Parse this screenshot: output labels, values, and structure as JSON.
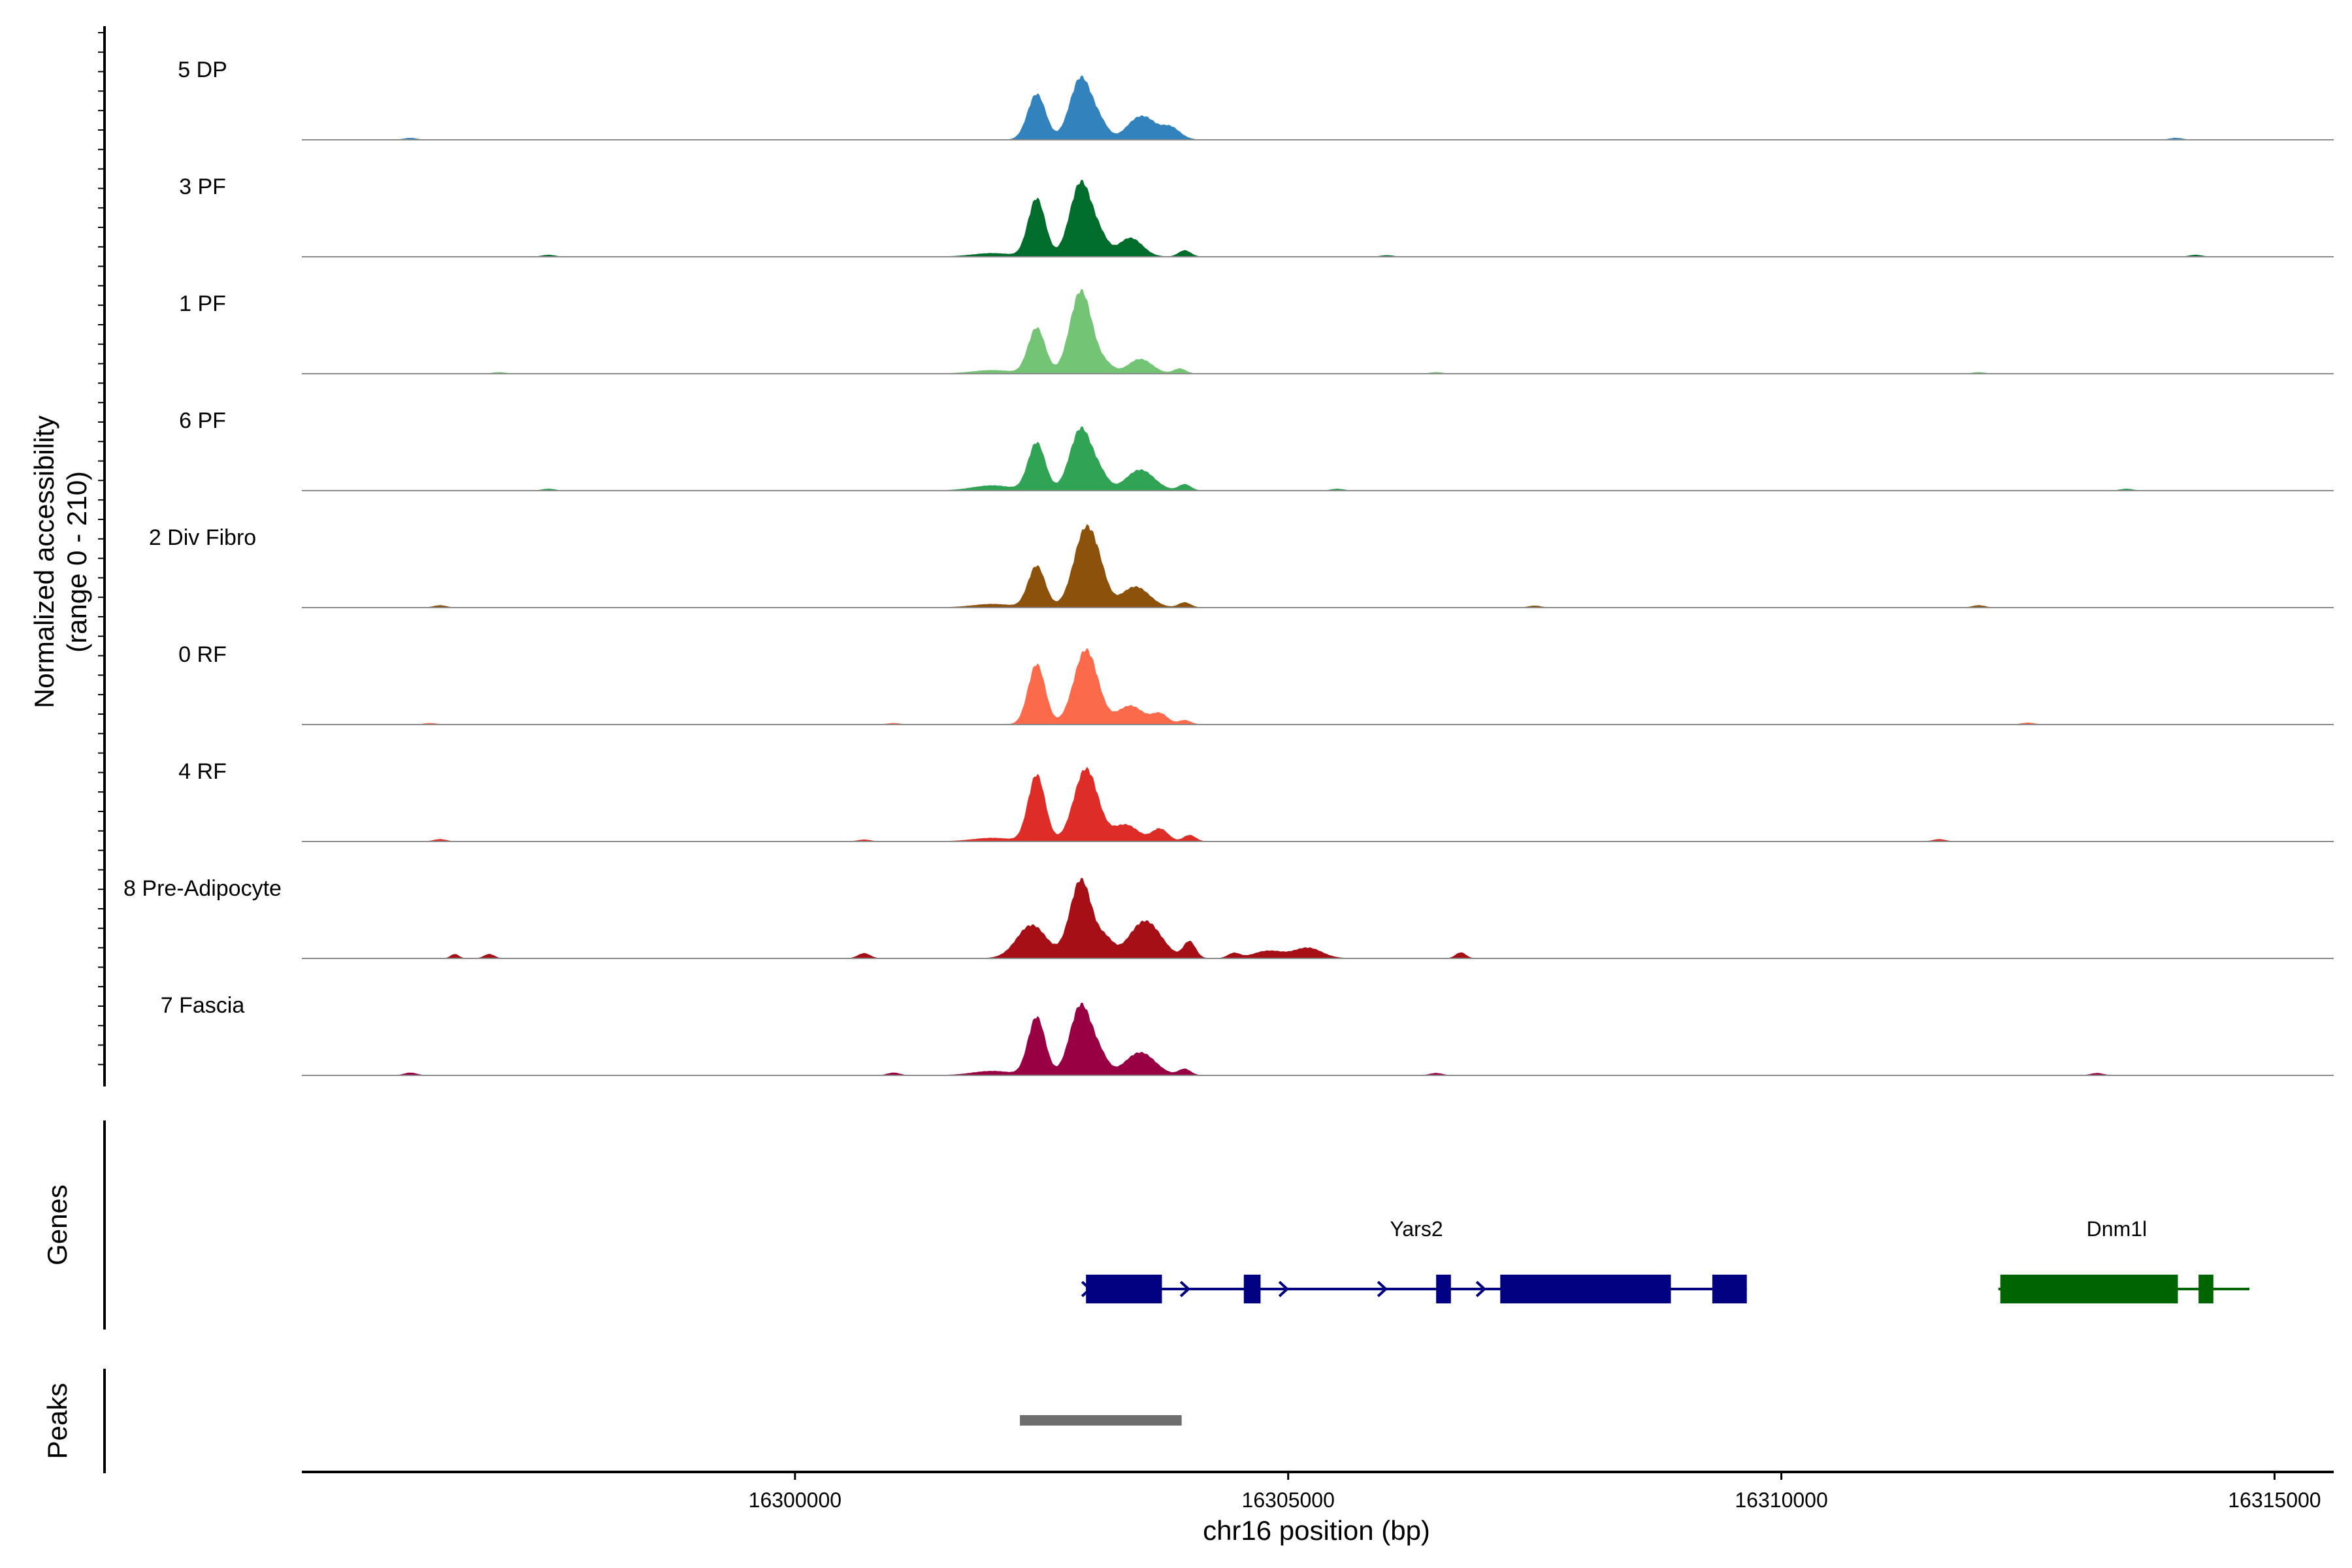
{
  "chart_data": {
    "type": "area",
    "title": "",
    "ylabel_line1": "Normalized accessibility",
    "ylabel_line2": "(range 0 - 210)",
    "y_range": [
      0,
      210
    ],
    "xlabel": "chr16 position (bp)",
    "xlim": [
      16295000,
      16315600
    ],
    "x_ticks": [
      16300000,
      16305000,
      16310000,
      16315000
    ],
    "x_tick_labels": [
      "16300000",
      "16305000",
      "16310000",
      "16315000"
    ],
    "genes_label": "Genes",
    "peaks_label": "Peaks",
    "series": [
      {
        "name": "5 DP",
        "color": "#3182bd",
        "peaks": [
          [
            16302450,
            110,
            90
          ],
          [
            16302900,
            150,
            110
          ],
          [
            16303500,
            55,
            130
          ],
          [
            16303800,
            30,
            100
          ],
          [
            16303100,
            30,
            80
          ]
        ],
        "noise": [
          [
            16296100,
            4
          ],
          [
            16303600,
            5
          ],
          [
            16314000,
            4
          ]
        ]
      },
      {
        "name": "3 PF",
        "color": "#006d2c",
        "peaks": [
          [
            16302450,
            140,
            85
          ],
          [
            16302900,
            180,
            110
          ],
          [
            16303400,
            45,
            120
          ],
          [
            16303100,
            35,
            80
          ],
          [
            16303950,
            15,
            60
          ],
          [
            16302000,
            8,
            200
          ]
        ],
        "noise": [
          [
            16297500,
            4
          ],
          [
            16306000,
            3
          ],
          [
            16314200,
            4
          ]
        ]
      },
      {
        "name": "1 PF",
        "color": "#74c476",
        "peaks": [
          [
            16302450,
            110,
            85
          ],
          [
            16302900,
            200,
            110
          ],
          [
            16303500,
            35,
            120
          ],
          [
            16303150,
            20,
            80
          ],
          [
            16303900,
            12,
            60
          ],
          [
            16302000,
            8,
            200
          ]
        ],
        "noise": [
          [
            16297000,
            3
          ],
          [
            16306500,
            3
          ],
          [
            16312000,
            3
          ]
        ]
      },
      {
        "name": "6 PF",
        "color": "#31a354",
        "peaks": [
          [
            16302450,
            115,
            85
          ],
          [
            16302900,
            150,
            110
          ],
          [
            16303500,
            50,
            140
          ],
          [
            16303100,
            30,
            80
          ],
          [
            16303950,
            15,
            60
          ],
          [
            16302000,
            12,
            200
          ]
        ],
        "noise": [
          [
            16297500,
            4
          ],
          [
            16305500,
            4
          ],
          [
            16313500,
            4
          ]
        ]
      },
      {
        "name": "2 Div Fibro",
        "color": "#8c510a",
        "peaks": [
          [
            16302450,
            100,
            85
          ],
          [
            16302950,
            190,
            120
          ],
          [
            16303450,
            50,
            140
          ],
          [
            16303100,
            30,
            80
          ],
          [
            16303950,
            12,
            60
          ],
          [
            16302000,
            8,
            200
          ]
        ],
        "noise": [
          [
            16296400,
            5
          ],
          [
            16307500,
            4
          ],
          [
            16312000,
            5
          ]
        ]
      },
      {
        "name": "0 RF",
        "color": "#fb6a4a",
        "peaks": [
          [
            16302450,
            145,
            85
          ],
          [
            16302950,
            180,
            120
          ],
          [
            16303400,
            45,
            130
          ],
          [
            16303700,
            25,
            80
          ],
          [
            16303950,
            10,
            60
          ]
        ],
        "noise": [
          [
            16296300,
            3
          ],
          [
            16301000,
            3
          ],
          [
            16312500,
            4
          ]
        ]
      },
      {
        "name": "4 RF",
        "color": "#de2d26",
        "peaks": [
          [
            16302450,
            160,
            85
          ],
          [
            16302950,
            175,
            120
          ],
          [
            16303350,
            40,
            130
          ],
          [
            16303700,
            30,
            80
          ],
          [
            16304000,
            15,
            60
          ],
          [
            16302000,
            8,
            200
          ]
        ],
        "noise": [
          [
            16296400,
            5
          ],
          [
            16300700,
            4
          ],
          [
            16311600,
            5
          ]
        ]
      },
      {
        "name": "8 Pre-Adipocyte",
        "color": "#a50f15",
        "peaks": [
          [
            16302900,
            190,
            110
          ],
          [
            16302400,
            80,
            150
          ],
          [
            16303550,
            90,
            160
          ],
          [
            16303150,
            40,
            80
          ],
          [
            16304000,
            40,
            60
          ],
          [
            16305200,
            25,
            140
          ],
          [
            16304800,
            18,
            150
          ],
          [
            16304450,
            12,
            60
          ],
          [
            16306750,
            14,
            50
          ],
          [
            16300700,
            12,
            60
          ],
          [
            16296900,
            10,
            50
          ],
          [
            16296550,
            10,
            40
          ]
        ],
        "noise": []
      },
      {
        "name": "7 Fascia",
        "color": "#980043",
        "peaks": [
          [
            16302450,
            140,
            85
          ],
          [
            16302900,
            170,
            110
          ],
          [
            16303500,
            55,
            150
          ],
          [
            16303100,
            35,
            80
          ],
          [
            16303950,
            15,
            60
          ],
          [
            16302000,
            10,
            200
          ]
        ],
        "noise": [
          [
            16296100,
            6
          ],
          [
            16301000,
            6
          ],
          [
            16306500,
            5
          ],
          [
            16313200,
            5
          ]
        ]
      }
    ],
    "genes": [
      {
        "name": "Yars2",
        "color": "#000080",
        "strand": "+",
        "start": 16302950,
        "end": 16309650,
        "exons": [
          [
            16302950,
            16303720
          ],
          [
            16304550,
            16304720
          ],
          [
            16306500,
            16306650
          ],
          [
            16307150,
            16308880
          ],
          [
            16309300,
            16309650
          ]
        ],
        "arrows": [
          16302950,
          16303950,
          16304950,
          16305950,
          16306950
        ]
      },
      {
        "name": "Dnm1l",
        "color": "#006400",
        "strand": "+",
        "start": 16312200,
        "end": 16314600,
        "exons": [
          [
            16312220,
            16314020
          ],
          [
            16314230,
            16314380
          ]
        ],
        "arrows": []
      }
    ],
    "peak_regions": [
      [
        16302280,
        16303920
      ]
    ],
    "peak_color": "#6e6e6e"
  }
}
